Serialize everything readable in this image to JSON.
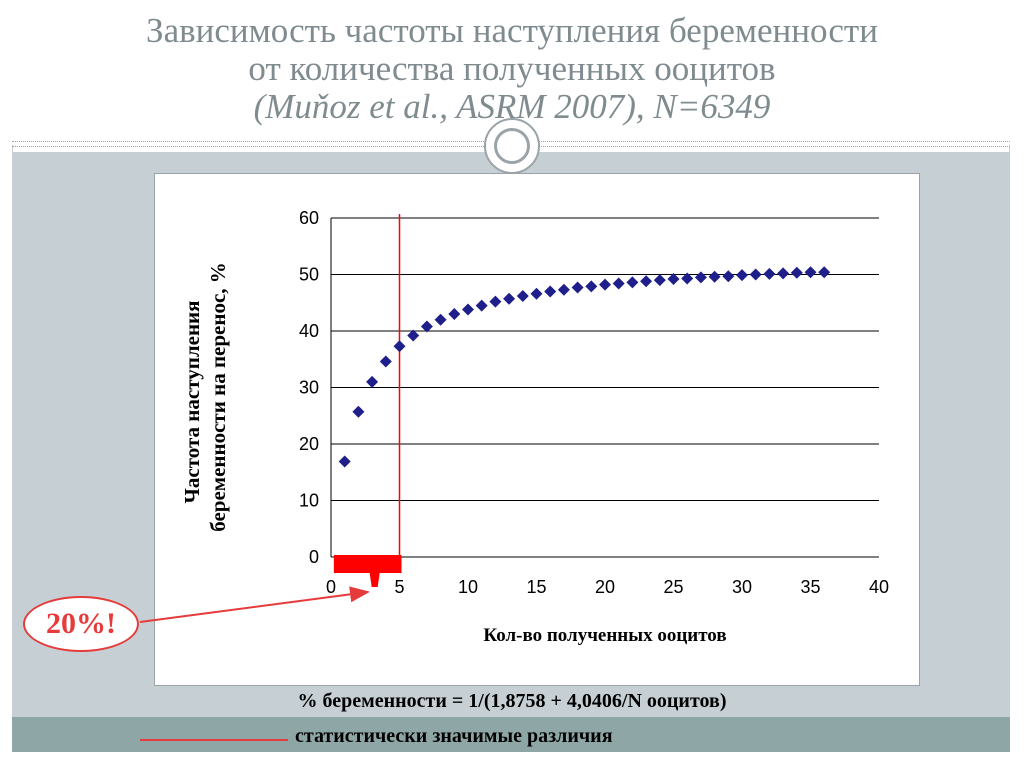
{
  "title": {
    "line1": "Зависимость частоты наступления беременности",
    "line2": "от количества полученных ооцитов",
    "line3": "(Muňoz et al., ASRM 2007), N=6349"
  },
  "formula": "% беременности = 1/(1,8758 + 4,0406/N ооцитов)",
  "significance_legend": "статистически значимые различия",
  "badge": "20%!",
  "colors": {
    "marker": "#1f1f8c",
    "highlight": "#ff0000",
    "annotation": "#e53b3b",
    "title": "#7f8b8f",
    "panel": "#c6d0d4",
    "band": "#8ea7a6"
  },
  "chart_data": {
    "type": "scatter",
    "xlabel": "Кол-во полученных ооцитов",
    "ylabel": [
      "Частота наступления",
      "беременности на перенос, %"
    ],
    "xlim": [
      0,
      40
    ],
    "ylim": [
      0,
      60
    ],
    "x_ticks": [
      "0",
      "5",
      "10",
      "15",
      "20",
      "25",
      "30",
      "35",
      "40"
    ],
    "y_ticks": [
      "0",
      "10",
      "20",
      "30",
      "40",
      "50",
      "60"
    ],
    "grid": "horizontal",
    "marker": "diamond",
    "x": [
      1,
      2,
      3,
      4,
      5,
      6,
      7,
      8,
      9,
      10,
      11,
      12,
      13,
      14,
      15,
      16,
      17,
      18,
      19,
      20,
      21,
      22,
      23,
      24,
      25,
      26,
      27,
      28,
      29,
      30,
      31,
      32,
      33,
      34,
      35,
      36
    ],
    "values": [
      16.9,
      25.7,
      31.0,
      34.6,
      37.3,
      39.2,
      40.8,
      42.0,
      43.0,
      43.8,
      44.5,
      45.2,
      45.7,
      46.2,
      46.6,
      47.0,
      47.3,
      47.7,
      47.9,
      48.2,
      48.4,
      48.6,
      48.8,
      49.0,
      49.2,
      49.3,
      49.5,
      49.6,
      49.7,
      49.9,
      50.0,
      50.1,
      50.2,
      50.3,
      50.4,
      50.4
    ],
    "reference_line_x": 5,
    "highlight_range": [
      0.5,
      5
    ]
  }
}
